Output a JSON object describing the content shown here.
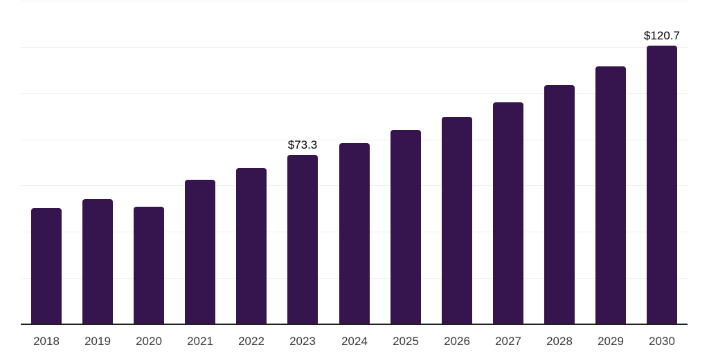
{
  "chart_data": {
    "type": "bar",
    "title": "",
    "xlabel": "",
    "ylabel": "",
    "categories": [
      "2018",
      "2019",
      "2020",
      "2021",
      "2022",
      "2023",
      "2024",
      "2025",
      "2026",
      "2027",
      "2028",
      "2029",
      "2030"
    ],
    "values": [
      50.4,
      54.1,
      50.9,
      62.6,
      67.7,
      73.3,
      78.4,
      84.0,
      89.8,
      96.0,
      103.4,
      111.6,
      120.7
    ],
    "data_labels": [
      {
        "year": "2023",
        "text": "$73.3"
      },
      {
        "year": "2030",
        "text": "$120.7"
      }
    ],
    "ylim": [
      0,
      140
    ],
    "gridline_step": 20,
    "grid": true,
    "legend": false,
    "y_axis_labels_visible": false,
    "colors": {
      "bar": "#36154E",
      "gridline": "#efefef",
      "axis_line": "#1f1f1f",
      "tick_label": "#3a3a3a",
      "data_label": "#000000",
      "background": "#ffffff"
    }
  }
}
